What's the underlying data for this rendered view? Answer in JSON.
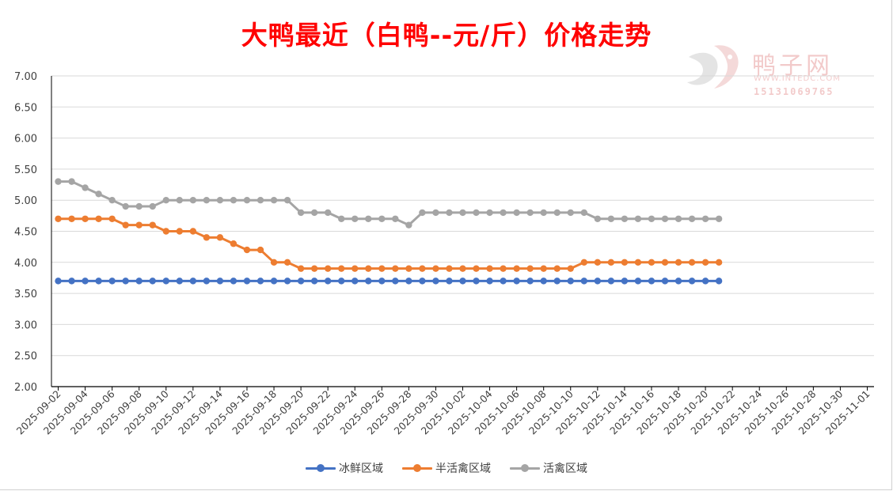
{
  "chart_data": {
    "type": "line",
    "title": "大鸭最近（白鸭--元/斤）价格走势",
    "xlabel": "",
    "ylabel": "",
    "ylim": [
      2.0,
      7.0
    ],
    "yticks": [
      "2.00",
      "2.50",
      "3.00",
      "3.50",
      "4.00",
      "4.50",
      "5.00",
      "5.50",
      "6.00",
      "6.50",
      "7.00"
    ],
    "xtick_labels": [
      "2025-09-02",
      "2025-09-04",
      "2025-09-06",
      "2025-09-08",
      "2025-09-10",
      "2025-09-12",
      "2025-09-14",
      "2025-09-16",
      "2025-09-18",
      "2025-09-20",
      "2025-09-22",
      "2025-09-24",
      "2025-09-26",
      "2025-09-28",
      "2025-09-30",
      "2025-10-02",
      "2025-10-04",
      "2025-10-06",
      "2025-10-08",
      "2025-10-10",
      "2025-10-12",
      "2025-10-14",
      "2025-10-16",
      "2025-10-18",
      "2025-10-20",
      "2025-10-22",
      "2025-10-24",
      "2025-10-26",
      "2025-10-28",
      "2025-10-30",
      "2025-11-01"
    ],
    "x_start": "2025-09-02",
    "x_end": "2025-11-02",
    "grid": true,
    "legend_position": "bottom",
    "series": [
      {
        "name": "冰鲜区域",
        "color": "#4472c4",
        "x": [
          "2025-09-02",
          "2025-09-03",
          "2025-09-04",
          "2025-09-05",
          "2025-09-06",
          "2025-09-07",
          "2025-09-08",
          "2025-09-09",
          "2025-09-10",
          "2025-09-11",
          "2025-09-12",
          "2025-09-13",
          "2025-09-14",
          "2025-09-15",
          "2025-09-16",
          "2025-09-17",
          "2025-09-18",
          "2025-09-19",
          "2025-09-20",
          "2025-09-21",
          "2025-09-22",
          "2025-09-23",
          "2025-09-24",
          "2025-09-25",
          "2025-09-26",
          "2025-09-27",
          "2025-09-28",
          "2025-09-29",
          "2025-09-30",
          "2025-10-01",
          "2025-10-02",
          "2025-10-03",
          "2025-10-04",
          "2025-10-05",
          "2025-10-06",
          "2025-10-07",
          "2025-10-08",
          "2025-10-09",
          "2025-10-10",
          "2025-10-11",
          "2025-10-12",
          "2025-10-13",
          "2025-10-14",
          "2025-10-15",
          "2025-10-16",
          "2025-10-17",
          "2025-10-18",
          "2025-10-19",
          "2025-10-20",
          "2025-10-21"
        ],
        "values": [
          3.7,
          3.7,
          3.7,
          3.7,
          3.7,
          3.7,
          3.7,
          3.7,
          3.7,
          3.7,
          3.7,
          3.7,
          3.7,
          3.7,
          3.7,
          3.7,
          3.7,
          3.7,
          3.7,
          3.7,
          3.7,
          3.7,
          3.7,
          3.7,
          3.7,
          3.7,
          3.7,
          3.7,
          3.7,
          3.7,
          3.7,
          3.7,
          3.7,
          3.7,
          3.7,
          3.7,
          3.7,
          3.7,
          3.7,
          3.7,
          3.7,
          3.7,
          3.7,
          3.7,
          3.7,
          3.7,
          3.7,
          3.7,
          3.7,
          3.7
        ]
      },
      {
        "name": "半活禽区域",
        "color": "#ed7d31",
        "x": [
          "2025-09-02",
          "2025-09-03",
          "2025-09-04",
          "2025-09-05",
          "2025-09-06",
          "2025-09-07",
          "2025-09-08",
          "2025-09-09",
          "2025-09-10",
          "2025-09-11",
          "2025-09-12",
          "2025-09-13",
          "2025-09-14",
          "2025-09-15",
          "2025-09-16",
          "2025-09-17",
          "2025-09-18",
          "2025-09-19",
          "2025-09-20",
          "2025-09-21",
          "2025-09-22",
          "2025-09-23",
          "2025-09-24",
          "2025-09-25",
          "2025-09-26",
          "2025-09-27",
          "2025-09-28",
          "2025-09-29",
          "2025-09-30",
          "2025-10-01",
          "2025-10-02",
          "2025-10-03",
          "2025-10-04",
          "2025-10-05",
          "2025-10-06",
          "2025-10-07",
          "2025-10-08",
          "2025-10-09",
          "2025-10-10",
          "2025-10-11",
          "2025-10-12",
          "2025-10-13",
          "2025-10-14",
          "2025-10-15",
          "2025-10-16",
          "2025-10-17",
          "2025-10-18",
          "2025-10-19",
          "2025-10-20",
          "2025-10-21"
        ],
        "values": [
          4.7,
          4.7,
          4.7,
          4.7,
          4.7,
          4.6,
          4.6,
          4.6,
          4.5,
          4.5,
          4.5,
          4.4,
          4.4,
          4.3,
          4.2,
          4.2,
          4.0,
          4.0,
          3.9,
          3.9,
          3.9,
          3.9,
          3.9,
          3.9,
          3.9,
          3.9,
          3.9,
          3.9,
          3.9,
          3.9,
          3.9,
          3.9,
          3.9,
          3.9,
          3.9,
          3.9,
          3.9,
          3.9,
          3.9,
          4.0,
          4.0,
          4.0,
          4.0,
          4.0,
          4.0,
          4.0,
          4.0,
          4.0,
          4.0,
          4.0
        ]
      },
      {
        "name": "活禽区域",
        "color": "#a5a5a5",
        "x": [
          "2025-09-02",
          "2025-09-03",
          "2025-09-04",
          "2025-09-05",
          "2025-09-06",
          "2025-09-07",
          "2025-09-08",
          "2025-09-09",
          "2025-09-10",
          "2025-09-11",
          "2025-09-12",
          "2025-09-13",
          "2025-09-14",
          "2025-09-15",
          "2025-09-16",
          "2025-09-17",
          "2025-09-18",
          "2025-09-19",
          "2025-09-20",
          "2025-09-21",
          "2025-09-22",
          "2025-09-23",
          "2025-09-24",
          "2025-09-25",
          "2025-09-26",
          "2025-09-27",
          "2025-09-28",
          "2025-09-29",
          "2025-09-30",
          "2025-10-01",
          "2025-10-02",
          "2025-10-03",
          "2025-10-04",
          "2025-10-05",
          "2025-10-06",
          "2025-10-07",
          "2025-10-08",
          "2025-10-09",
          "2025-10-10",
          "2025-10-11",
          "2025-10-12",
          "2025-10-13",
          "2025-10-14",
          "2025-10-15",
          "2025-10-16",
          "2025-10-17",
          "2025-10-18",
          "2025-10-19",
          "2025-10-20",
          "2025-10-21"
        ],
        "values": [
          5.3,
          5.3,
          5.2,
          5.1,
          5.0,
          4.9,
          4.9,
          4.9,
          5.0,
          5.0,
          5.0,
          5.0,
          5.0,
          5.0,
          5.0,
          5.0,
          5.0,
          5.0,
          4.8,
          4.8,
          4.8,
          4.7,
          4.7,
          4.7,
          4.7,
          4.7,
          4.6,
          4.8,
          4.8,
          4.8,
          4.8,
          4.8,
          4.8,
          4.8,
          4.8,
          4.8,
          4.8,
          4.8,
          4.8,
          4.8,
          4.7,
          4.7,
          4.7,
          4.7,
          4.7,
          4.7,
          4.7,
          4.7,
          4.7,
          4.7
        ]
      }
    ]
  },
  "watermark": {
    "name": "鸭子网",
    "url": "WWW.INTEDC.COM",
    "phone": "15131069765"
  }
}
